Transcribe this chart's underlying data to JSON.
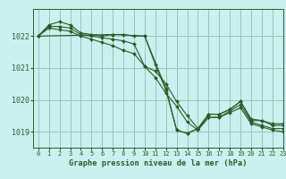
{
  "title": "Graphe pression niveau de la mer (hPa)",
  "bg_color": "#caf0f0",
  "grid_color": "#99bbaa",
  "line_color": "#2d5a27",
  "xlim": [
    -0.5,
    23
  ],
  "ylim": [
    1018.5,
    1022.85
  ],
  "yticks": [
    1019,
    1020,
    1021,
    1022
  ],
  "xticks": [
    0,
    1,
    2,
    3,
    4,
    5,
    6,
    7,
    8,
    9,
    10,
    11,
    12,
    13,
    14,
    15,
    16,
    17,
    18,
    19,
    20,
    21,
    22,
    23
  ],
  "series": [
    {
      "x": [
        0,
        1,
        2,
        3,
        4,
        5,
        6,
        7,
        8,
        9,
        10,
        11,
        12,
        13,
        14,
        15,
        16,
        17,
        18,
        19,
        20,
        21,
        22,
        23
      ],
      "y": [
        1022.0,
        1022.35,
        1022.45,
        1022.35,
        1022.1,
        1022.05,
        1022.0,
        1022.05,
        1022.05,
        1022.0,
        1022.0,
        1021.1,
        1020.3,
        1019.05,
        1018.95,
        1019.1,
        1019.55,
        1019.55,
        1019.7,
        1019.95,
        1019.4,
        1019.35,
        1019.25,
        1019.25
      ],
      "marker": "D",
      "ms": 2.0
    },
    {
      "x": [
        0,
        1,
        2,
        3,
        4,
        5,
        6,
        7,
        8,
        9,
        10,
        11,
        12,
        13,
        14,
        15,
        16,
        17,
        18,
        19,
        20,
        21,
        22,
        23
      ],
      "y": [
        1022.0,
        1022.3,
        1022.3,
        1022.25,
        1022.05,
        1022.0,
        1021.95,
        1021.9,
        1021.85,
        1021.75,
        1021.05,
        1020.9,
        1020.5,
        1019.95,
        1019.5,
        1019.1,
        1019.45,
        1019.45,
        1019.65,
        1019.85,
        1019.3,
        1019.2,
        1019.1,
        1019.1
      ],
      "marker": "D",
      "ms": 2.0
    },
    {
      "x": [
        0,
        1,
        2,
        3,
        4,
        5,
        6,
        7,
        8,
        9,
        10,
        11,
        12,
        13,
        14,
        15,
        16,
        17,
        18,
        19,
        20,
        21,
        22,
        23
      ],
      "y": [
        1022.0,
        1022.25,
        1022.2,
        1022.15,
        1022.0,
        1021.9,
        1021.8,
        1021.7,
        1021.55,
        1021.45,
        1021.05,
        1020.7,
        1020.2,
        1019.8,
        1019.3,
        1019.05,
        1019.45,
        1019.45,
        1019.6,
        1019.75,
        1019.25,
        1019.15,
        1019.05,
        1019.0
      ],
      "marker": "D",
      "ms": 2.0
    },
    {
      "x": [
        0,
        7,
        10,
        12,
        13,
        14,
        15,
        16,
        17,
        18,
        19,
        20,
        21,
        22,
        23
      ],
      "y": [
        1022.0,
        1022.05,
        1022.0,
        1020.35,
        1019.05,
        1018.95,
        1019.1,
        1019.55,
        1019.55,
        1019.7,
        1019.95,
        1019.35,
        1019.35,
        1019.2,
        1019.2
      ],
      "marker": "D",
      "ms": 2.0
    }
  ]
}
